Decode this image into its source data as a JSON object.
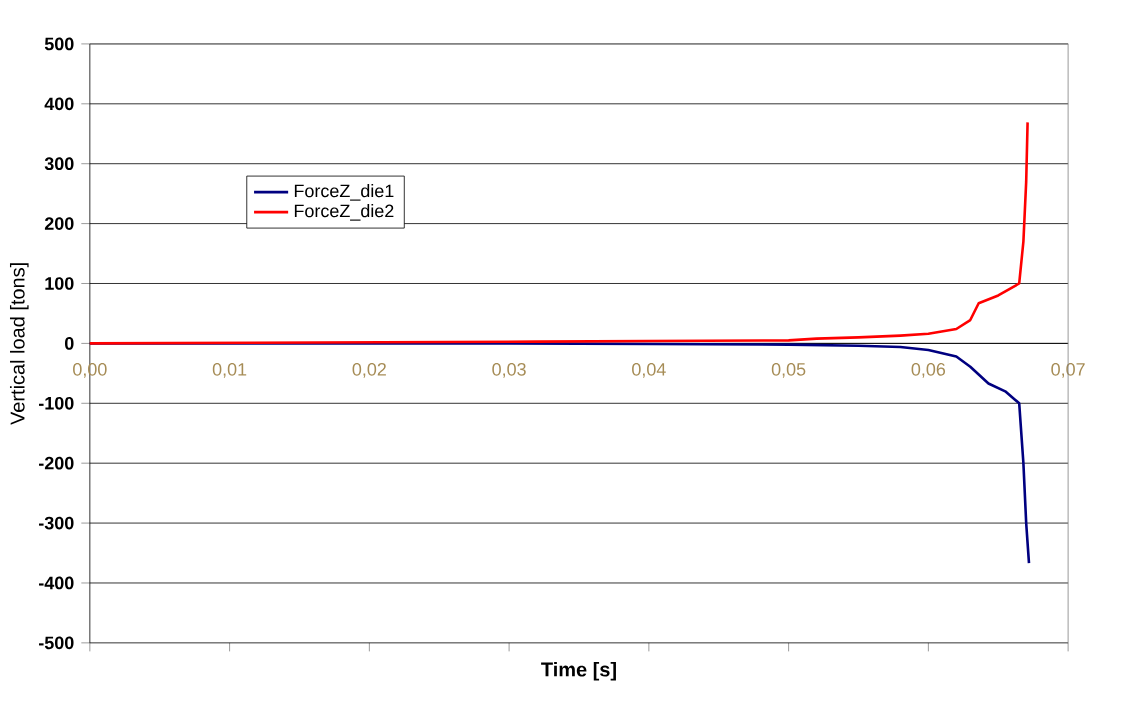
{
  "chart_data": {
    "type": "line",
    "xlabel": "Time [s]",
    "ylabel": "Vertical load [tons]",
    "xlim": [
      0,
      0.07
    ],
    "ylim": [
      -500,
      500
    ],
    "xticks": [
      {
        "value": 0,
        "label": "0,00"
      },
      {
        "value": 0.01,
        "label": "0,01"
      },
      {
        "value": 0.02,
        "label": "0,02"
      },
      {
        "value": 0.03,
        "label": "0,03"
      },
      {
        "value": 0.04,
        "label": "0,04"
      },
      {
        "value": 0.05,
        "label": "0,05"
      },
      {
        "value": 0.06,
        "label": "0,06"
      },
      {
        "value": 0.07,
        "label": "0,07"
      }
    ],
    "yticks": [
      -500,
      -400,
      -300,
      -200,
      -100,
      0,
      100,
      200,
      300,
      400,
      500
    ],
    "grid": "y",
    "legend": "top left",
    "marker": "none",
    "line_style": "solid",
    "series": [
      {
        "name": "ForceZ_die1",
        "color": "#000080",
        "x": [
          0,
          0.03,
          0.04,
          0.05,
          0.055,
          0.058,
          0.06,
          0.062,
          0.063,
          0.0643,
          0.0655,
          0.0662,
          0.0665,
          0.0668,
          0.067,
          0.0672
        ],
        "values": [
          0,
          0,
          -1,
          -2,
          -4,
          -6,
          -11,
          -22,
          -39,
          -67,
          -80,
          -94,
          -100,
          -200,
          -300,
          -367
        ]
      },
      {
        "name": "ForceZ_die2",
        "color": "#ff0000",
        "x": [
          0,
          0.032,
          0.04,
          0.05,
          0.052,
          0.055,
          0.058,
          0.06,
          0.062,
          0.063,
          0.0636,
          0.065,
          0.0665,
          0.0668,
          0.067,
          0.0671
        ],
        "values": [
          0,
          3,
          4,
          5,
          8,
          10,
          13,
          16,
          24,
          39,
          67,
          80,
          100,
          170,
          270,
          369
        ]
      }
    ]
  }
}
